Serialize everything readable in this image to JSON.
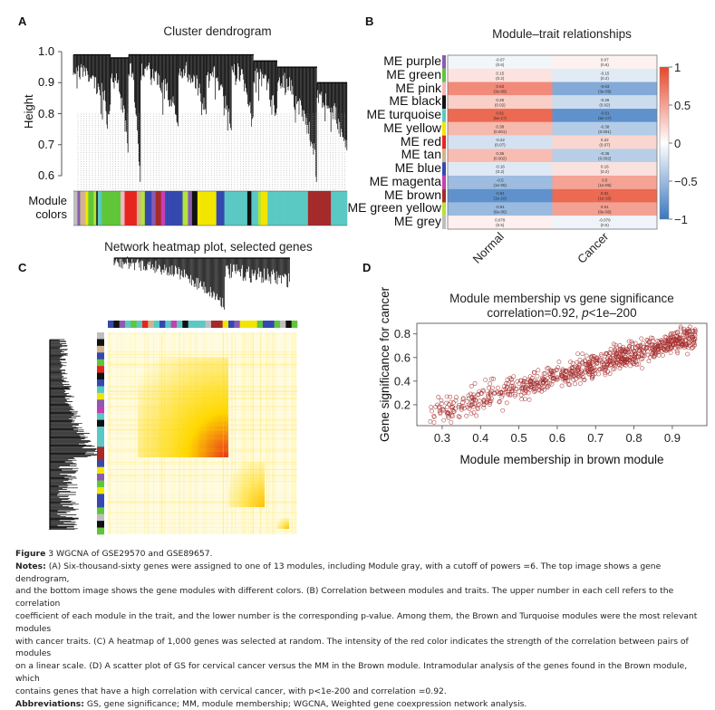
{
  "figure": {
    "panels": {
      "A": {
        "letter": "A",
        "title": "Cluster dendrogram",
        "ylabel": "Height",
        "yticks": [
          "1.0",
          "0.9",
          "0.8",
          "0.7",
          "0.6"
        ],
        "colorbar_label_1": "Module",
        "colorbar_label_2": "colors"
      },
      "B": {
        "letter": "B",
        "title": "Module–trait relationships"
      },
      "C": {
        "letter": "C",
        "title": "Network heatmap plot, selected genes"
      },
      "D": {
        "letter": "D"
      }
    },
    "caption": {
      "fig_label": "Figure",
      "fig_num": " 3 WGCNA of GSE29570 and GSE89657.",
      "notes_label": "Notes:",
      "notes_lines": [
        " (A) Six-thousand-sixty genes were assigned to one of 13 modules, including Module gray, with a cutoff of powers =6. The top image shows a gene dendrogram,",
        "and the bottom image shows the gene modules with different colors. (B) Correlation between modules and traits. The upper number in each cell refers to the correlation",
        "coefficient of each module in the trait, and the lower number is the corresponding p-value. Among them, the Brown and Turquoise modules were the most relevant modules",
        "with cancer traits. (C) A heatmap of 1,000 genes was selected at random. The intensity of the red color indicates the strength of the correlation between pairs of modules",
        "on a linear scale. (D) A scatter plot of GS for cervical cancer versus the MM in the Brown module. Intramodular analysis of the genes found in the Brown module, which",
        "contains genes that have a high correlation with cervical cancer, with p<1e-200 and correlation =0.92."
      ],
      "abbrev_label": "Abbreviations:",
      "abbrev_text": " GS, gene significance; MM, module membership; WGCNA, Weighted gene coexpression network analysis."
    }
  },
  "colors": {
    "heat_neg": "#3a78c0",
    "heat_zero": "#ffffff",
    "heat_pos": "#e8462a",
    "scatter_point": "#a52a2a",
    "tom_low": "#fffbe0",
    "tom_mid": "#ffd800",
    "tom_high": "#e8301c"
  },
  "chart_data": [
    {
      "id": "A",
      "type": "dendrogram",
      "title": "Cluster dendrogram",
      "ylabel": "Height",
      "ylim": [
        0.55,
        1.0
      ],
      "yticks": [
        0.6,
        0.7,
        0.8,
        0.9,
        1.0
      ],
      "module_color_bar": [
        "grey",
        "purple",
        "tan",
        "yellow",
        "green",
        "greenyellow",
        "black",
        "turquoise",
        "green",
        "green",
        "pink",
        "red",
        "tan",
        "greenyellow",
        "blue",
        "purple",
        "brown",
        "magenta",
        "blue",
        "blue",
        "greenyellow",
        "purple",
        "black",
        "yellow",
        "yellow",
        "yellow",
        "blue",
        "turquoise",
        "turquoise",
        "black",
        "turquoise",
        "greenyellow",
        "yellow",
        "turquoise",
        "turquoise",
        "turquoise",
        "brown",
        "turquoise"
      ]
    },
    {
      "id": "B",
      "type": "heatmap",
      "title": "Module–trait relationships",
      "columns": [
        "Normal",
        "Cancer"
      ],
      "rows": [
        {
          "label": "ME purple",
          "color": "purple",
          "values": [
            -0.07,
            0.07
          ],
          "pvalues": [
            "0.6",
            "0.6"
          ]
        },
        {
          "label": "ME green",
          "color": "green",
          "values": [
            0.15,
            -0.15
          ],
          "pvalues": [
            "0.2",
            "0.2"
          ]
        },
        {
          "label": "ME pink",
          "color": "pink",
          "values": [
            0.63,
            -0.63
          ],
          "pvalues": [
            "3e-09",
            "3e-09"
          ]
        },
        {
          "label": "ME black",
          "color": "black",
          "values": [
            0.26,
            -0.26
          ],
          "pvalues": [
            "0.02",
            "0.02"
          ]
        },
        {
          "label": "ME turquoise",
          "color": "turquoise",
          "values": [
            0.81,
            -0.81
          ],
          "pvalues": [
            "5e-17",
            "5e-17"
          ]
        },
        {
          "label": "ME yellow",
          "color": "yellow",
          "values": [
            0.38,
            -0.38
          ],
          "pvalues": [
            "0.001",
            "0.001"
          ]
        },
        {
          "label": "ME red",
          "color": "red",
          "values": [
            -0.22,
            0.22
          ],
          "pvalues": [
            "0.07",
            "0.07"
          ]
        },
        {
          "label": "ME tan",
          "color": "tan",
          "values": [
            0.36,
            -0.36
          ],
          "pvalues": [
            "0.002",
            "0.002"
          ]
        },
        {
          "label": "ME blue",
          "color": "blue",
          "values": [
            -0.16,
            0.16
          ],
          "pvalues": [
            "0.2",
            "0.2"
          ]
        },
        {
          "label": "ME magenta",
          "color": "magenta",
          "values": [
            -0.5,
            0.5
          ],
          "pvalues": [
            "1e-05",
            "1e-05"
          ]
        },
        {
          "label": "ME brown",
          "color": "brown",
          "values": [
            -0.81,
            0.81
          ],
          "pvalues": [
            "1e-16",
            "1e-16"
          ]
        },
        {
          "label": "ME green yellow",
          "color": "greenyellow",
          "values": [
            -0.51,
            0.51
          ],
          "pvalues": [
            "6e-06",
            "6e-06"
          ]
        },
        {
          "label": "ME grey",
          "color": "grey",
          "values": [
            0.079,
            -0.079
          ],
          "pvalues": [
            "0.5",
            "0.5"
          ]
        }
      ],
      "colorbar": {
        "range": [
          -1,
          1
        ],
        "ticks": [
          "1",
          "0.5",
          "0",
          "−0.5",
          "−1"
        ]
      }
    },
    {
      "id": "C",
      "type": "heatmap",
      "title": "Network heatmap plot, selected genes",
      "description": "TOM heatmap of 1,000 randomly selected genes with dendrograms on top and left; strongest block in lower-left of upper-left quadrant"
    },
    {
      "id": "D",
      "type": "scatter",
      "title": "Module membership vs gene significance",
      "subtitle_prefix": "correlation=0.92, ",
      "subtitle_p": "p",
      "subtitle_suffix": "<1e–200",
      "xlabel": "Module membership in brown module",
      "ylabel": "Gene significance for cancer",
      "xlim": [
        0.234,
        0.99
      ],
      "ylim": [
        0.023,
        0.89
      ],
      "xticks": [
        0.3,
        0.4,
        0.5,
        0.6,
        0.7,
        0.8,
        0.9
      ],
      "yticks": [
        0.2,
        0.4,
        0.6,
        0.8
      ],
      "correlation": 0.92,
      "trend": {
        "slope": 0.95,
        "intercept": -0.13,
        "x_range": [
          0.26,
          0.96
        ],
        "noise_sd": 0.055,
        "n_points": 850
      }
    }
  ]
}
